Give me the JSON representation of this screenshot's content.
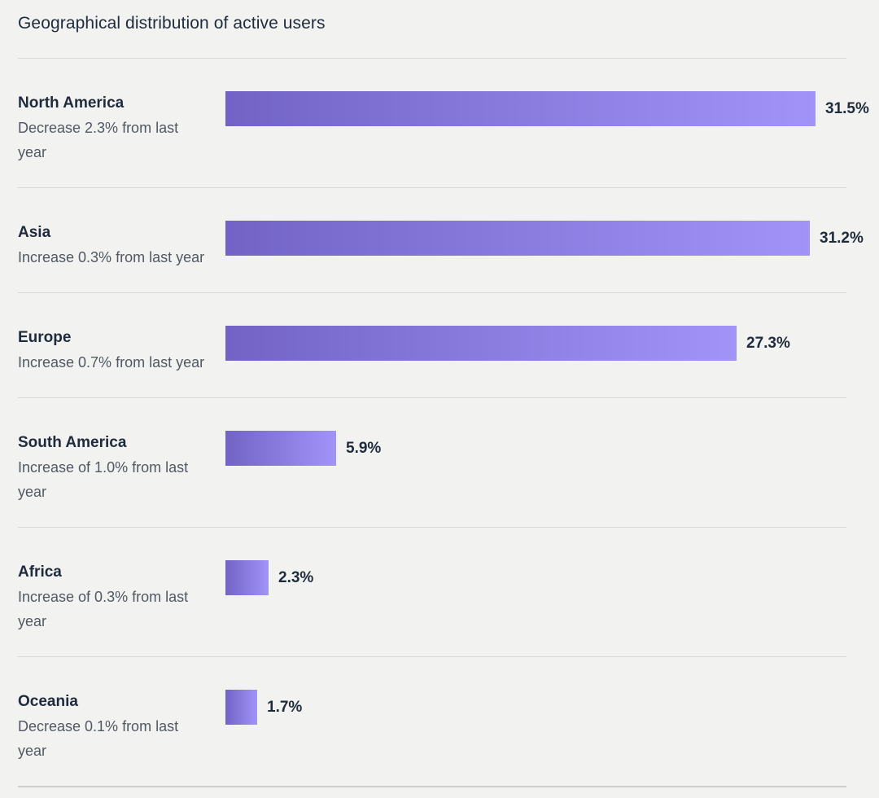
{
  "title": "Geographical distribution of active users",
  "colors": {
    "background": "#f2f2f1",
    "text_primary": "#1f2b3c",
    "text_secondary": "#515862",
    "divider": "#d9d8d6",
    "divider_bottom": "#cfcecc",
    "bar_gradient_start": "#7263c5",
    "bar_gradient_end": "#a193f8"
  },
  "chart_data": {
    "type": "bar",
    "orientation": "horizontal",
    "title": "Geographical distribution of active users",
    "unit": "%",
    "axis_visible": false,
    "grid": false,
    "legend": false,
    "xlim": [
      0,
      33
    ],
    "categories": [
      "North America",
      "Asia",
      "Europe",
      "South America",
      "Africa",
      "Oceania"
    ],
    "values": [
      31.5,
      31.2,
      27.3,
      5.9,
      2.3,
      1.7
    ],
    "value_labels": [
      "31.5%",
      "31.2%",
      "27.3%",
      "5.9%",
      "2.3%",
      "1.7%"
    ],
    "change_notes": [
      "Decrease 2.3% from last year",
      "Increase 0.3% from last year",
      "Increase 0.7% from last year",
      "Increase of 1.0% from last year",
      "Increase of 0.3% from last year",
      "Decrease 0.1% from last year"
    ]
  }
}
